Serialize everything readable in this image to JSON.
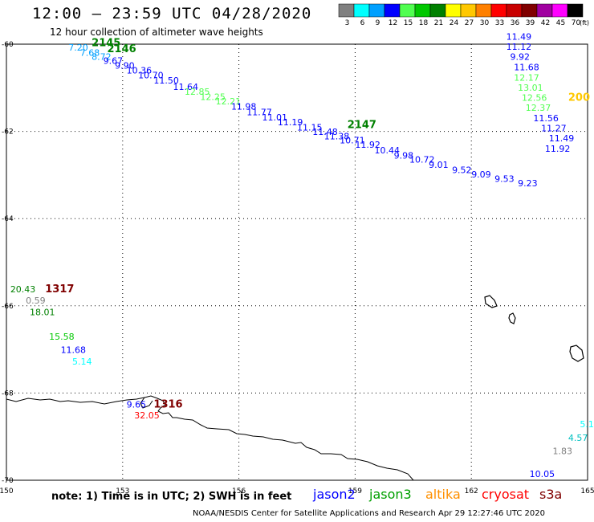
{
  "header": {
    "title": "12:00 – 23:59 UTC 04/28/2020",
    "subtitle": "12 hour collection of altimeter wave heights"
  },
  "legend": {
    "unit": "(ft)",
    "bins": [
      {
        "label": "3",
        "color": "#808080"
      },
      {
        "label": "6",
        "color": "#00ffff"
      },
      {
        "label": "9",
        "color": "#00a0ff"
      },
      {
        "label": "12",
        "color": "#0000ff"
      },
      {
        "label": "15",
        "color": "#50ff50"
      },
      {
        "label": "18",
        "color": "#00c800"
      },
      {
        "label": "21",
        "color": "#008000"
      },
      {
        "label": "24",
        "color": "#ffff00"
      },
      {
        "label": "27",
        "color": "#ffc800"
      },
      {
        "label": "30",
        "color": "#ff8000"
      },
      {
        "label": "33",
        "color": "#ff0000"
      },
      {
        "label": "36",
        "color": "#c80000"
      },
      {
        "label": "39",
        "color": "#800000"
      },
      {
        "label": "42",
        "color": "#a000a0"
      },
      {
        "label": "45",
        "color": "#ff00ff"
      },
      {
        "label": "70",
        "color": "#000000"
      }
    ]
  },
  "axes": {
    "lat_labels": [
      "-60",
      "-62",
      "-64",
      "-66",
      "-68",
      "-70"
    ],
    "lon_labels": [
      "150",
      "153",
      "156",
      "159",
      "162",
      "165"
    ]
  },
  "observations": [
    {
      "text": "7.20",
      "color": "#00a0ff",
      "lon": 151.6,
      "lat": -60.15
    },
    {
      "text": "7.68",
      "color": "#00a0ff",
      "lon": 151.9,
      "lat": -60.27
    },
    {
      "text": "8.72",
      "color": "#00a0ff",
      "lon": 152.2,
      "lat": -60.36
    },
    {
      "text": "9.67",
      "color": "#0000ff",
      "lon": 152.5,
      "lat": -60.45
    },
    {
      "text": "9.90",
      "color": "#0000ff",
      "lon": 152.8,
      "lat": -60.56
    },
    {
      "text": "10.36",
      "color": "#0000ff",
      "lon": 153.1,
      "lat": -60.67
    },
    {
      "text": "10.70",
      "color": "#0000ff",
      "lon": 153.4,
      "lat": -60.78
    },
    {
      "text": "11.50",
      "color": "#0000ff",
      "lon": 153.8,
      "lat": -60.9
    },
    {
      "text": "11.64",
      "color": "#0000ff",
      "lon": 154.3,
      "lat": -61.05
    },
    {
      "text": "12.85",
      "color": "#50ff50",
      "lon": 154.6,
      "lat": -61.16
    },
    {
      "text": "12.25",
      "color": "#50ff50",
      "lon": 155.0,
      "lat": -61.28
    },
    {
      "text": "12.21",
      "color": "#50ff50",
      "lon": 155.4,
      "lat": -61.38
    },
    {
      "text": "11.98",
      "color": "#0000ff",
      "lon": 155.8,
      "lat": -61.5
    },
    {
      "text": "11.77",
      "color": "#0000ff",
      "lon": 156.2,
      "lat": -61.63
    },
    {
      "text": "11.01",
      "color": "#0000ff",
      "lon": 156.6,
      "lat": -61.75
    },
    {
      "text": "11.19",
      "color": "#0000ff",
      "lon": 157.0,
      "lat": -61.86
    },
    {
      "text": "11.15",
      "color": "#0000ff",
      "lon": 157.5,
      "lat": -61.98
    },
    {
      "text": "11.48",
      "color": "#0000ff",
      "lon": 157.9,
      "lat": -62.08
    },
    {
      "text": "11.38",
      "color": "#0000ff",
      "lon": 158.2,
      "lat": -62.18
    },
    {
      "text": "10.71",
      "color": "#0000ff",
      "lon": 158.6,
      "lat": -62.27
    },
    {
      "text": "11.92",
      "color": "#0000ff",
      "lon": 159.0,
      "lat": -62.38
    },
    {
      "text": "10.44",
      "color": "#0000ff",
      "lon": 159.5,
      "lat": -62.5
    },
    {
      "text": "9.98",
      "color": "#0000ff",
      "lon": 160.0,
      "lat": -62.62
    },
    {
      "text": "10.72",
      "color": "#0000ff",
      "lon": 160.4,
      "lat": -62.72
    },
    {
      "text": "9.01",
      "color": "#0000ff",
      "lon": 160.9,
      "lat": -62.84
    },
    {
      "text": "9.52",
      "color": "#0000ff",
      "lon": 161.5,
      "lat": -62.96
    },
    {
      "text": "9.09",
      "color": "#0000ff",
      "lon": 162.0,
      "lat": -63.06
    },
    {
      "text": "9.53",
      "color": "#0000ff",
      "lon": 162.6,
      "lat": -63.16
    },
    {
      "text": "9.23",
      "color": "#0000ff",
      "lon": 163.2,
      "lat": -63.26
    },
    {
      "text": "11.49",
      "color": "#0000ff",
      "lon": 162.9,
      "lat": -59.9
    },
    {
      "text": "11.12",
      "color": "#0000ff",
      "lon": 162.9,
      "lat": -60.13
    },
    {
      "text": "9.92",
      "color": "#0000ff",
      "lon": 163.0,
      "lat": -60.36
    },
    {
      "text": "11.68",
      "color": "#0000ff",
      "lon": 163.1,
      "lat": -60.6
    },
    {
      "text": "12.17",
      "color": "#50ff50",
      "lon": 163.1,
      "lat": -60.84
    },
    {
      "text": "13.01",
      "color": "#50ff50",
      "lon": 163.2,
      "lat": -61.07
    },
    {
      "text": "12.56",
      "color": "#50ff50",
      "lon": 163.3,
      "lat": -61.3
    },
    {
      "text": "12.37",
      "color": "#50ff50",
      "lon": 163.4,
      "lat": -61.53
    },
    {
      "text": "11.56",
      "color": "#0000ff",
      "lon": 163.6,
      "lat": -61.77
    },
    {
      "text": "11.27",
      "color": "#0000ff",
      "lon": 163.8,
      "lat": -62.0
    },
    {
      "text": "11.49",
      "color": "#0000ff",
      "lon": 164.0,
      "lat": -62.23
    },
    {
      "text": "11.92",
      "color": "#0000ff",
      "lon": 163.9,
      "lat": -62.47
    },
    {
      "text": "20.43",
      "color": "#008000",
      "lon": 150.1,
      "lat": -65.69
    },
    {
      "text": "0.59",
      "color": "#808080",
      "lon": 150.5,
      "lat": -65.95
    },
    {
      "text": "18.01",
      "color": "#008000",
      "lon": 150.6,
      "lat": -66.22
    },
    {
      "text": "15.58",
      "color": "#00c800",
      "lon": 151.1,
      "lat": -66.78
    },
    {
      "text": "11.68",
      "color": "#0000ff",
      "lon": 151.4,
      "lat": -67.08
    },
    {
      "text": "5.14",
      "color": "#00ffff",
      "lon": 151.7,
      "lat": -67.35
    },
    {
      "text": "9.65",
      "color": "#0000ff",
      "lon": 153.1,
      "lat": -68.33
    },
    {
      "text": "32.05",
      "color": "#ff0000",
      "lon": 153.3,
      "lat": -68.58
    },
    {
      "text": "5.1",
      "color": "#00ffff",
      "lon": 164.8,
      "lat": -68.78
    },
    {
      "text": "4.57",
      "color": "#00c0c0",
      "lon": 164.5,
      "lat": -69.1
    },
    {
      "text": "1.83",
      "color": "#808080",
      "lon": 164.1,
      "lat": -69.4
    },
    {
      "text": "10.05",
      "color": "#0000ff",
      "lon": 163.5,
      "lat": -69.93
    }
  ],
  "time_labels": [
    {
      "text": "2145",
      "color": "#008000",
      "lon": 152.2,
      "lat": -60.05
    },
    {
      "text": "2146",
      "color": "#008000",
      "lon": 152.6,
      "lat": -60.18
    },
    {
      "text": "2147",
      "color": "#008000",
      "lon": 158.8,
      "lat": -61.92
    },
    {
      "text": "1317",
      "color": "#800000",
      "lon": 151.0,
      "lat": -65.69
    },
    {
      "text": "1316",
      "color": "#800000",
      "lon": 153.8,
      "lat": -68.33
    },
    {
      "text": "200",
      "color": "#ffc800",
      "lon": 164.5,
      "lat": -61.3
    }
  ],
  "footer": {
    "note": "note: 1) Time is in UTC; 2) SWH is in feet",
    "credit": "NOAA/NESDIS Center for Satellite Applications and Research     Apr 29 12:27:46 UTC 2020",
    "missions": [
      {
        "name": "jason2",
        "color": "#0000ff"
      },
      {
        "name": "jason3",
        "color": "#00a000"
      },
      {
        "name": "altika",
        "color": "#ff9000"
      },
      {
        "name": "cryosat",
        "color": "#ff0000"
      },
      {
        "name": "s3a",
        "color": "#800000"
      }
    ]
  }
}
